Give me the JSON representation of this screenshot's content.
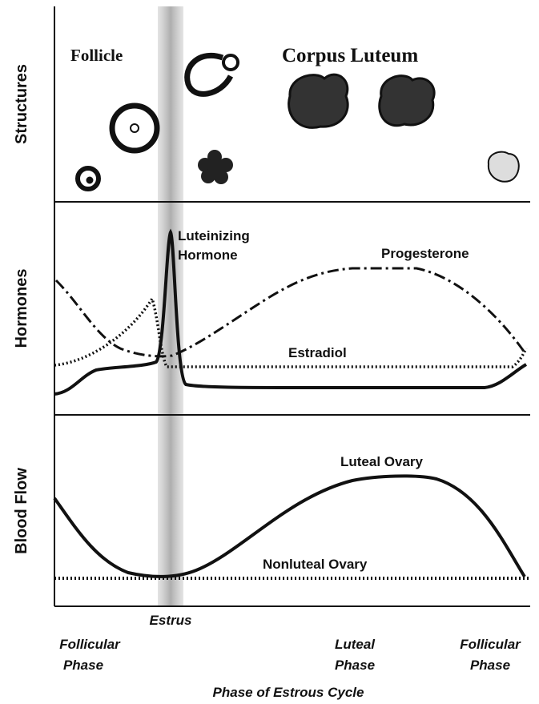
{
  "panels": [
    "Structures",
    "Hormones",
    "Blood Flow"
  ],
  "structures": {
    "follicle": "Follicle",
    "corpus_luteum": "Corpus Luteum"
  },
  "hormones": {
    "lh": [
      "Luteinizing",
      "Hormone"
    ],
    "progesterone": "Progesterone",
    "estradiol": "Estradiol"
  },
  "blood_flow": {
    "luteal": "Luteal Ovary",
    "nonluteal": "Nonluteal Ovary"
  },
  "x_axis": {
    "estrus": "Estrus",
    "phases": [
      [
        "Follicular",
        "Phase"
      ],
      [
        "Luteal",
        "Phase"
      ],
      [
        "Follicular",
        "Phase"
      ]
    ],
    "title": "Phase of Estrous Cycle"
  }
}
